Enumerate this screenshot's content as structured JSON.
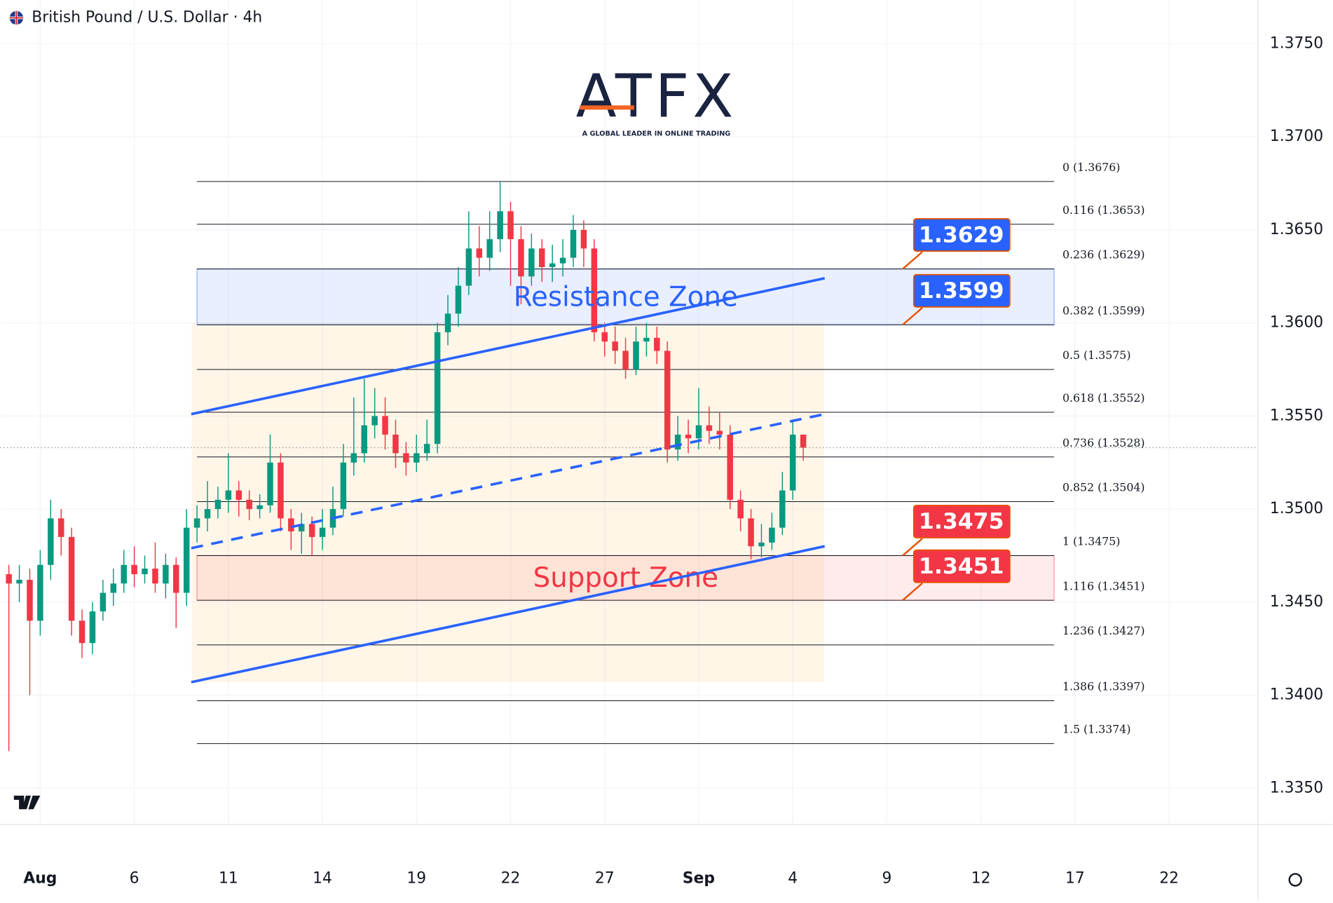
{
  "chart_data": {
    "type": "candlestick",
    "title": "British Pound / U.S. Dollar · 4h",
    "logo": {
      "name": "ATFX",
      "tagline": "A GLOBAL LEADER IN ONLINE TRADING"
    },
    "up_color": "#089981",
    "down_color": "#f23645",
    "x": [
      -6,
      -4,
      -2,
      0,
      2,
      4,
      6,
      8,
      10,
      12,
      14,
      16,
      18,
      20,
      22,
      24,
      26,
      28,
      30,
      32,
      34,
      36,
      38,
      40,
      42,
      44,
      46,
      48,
      50,
      52,
      54,
      56,
      58,
      60,
      62,
      64,
      66,
      68,
      70,
      72,
      74,
      76,
      78,
      80,
      82,
      84,
      86,
      88,
      90,
      92,
      94,
      96,
      98,
      100,
      102,
      104,
      106,
      108,
      110,
      112,
      114,
      116,
      118,
      120,
      122,
      124,
      126,
      128,
      130,
      132,
      134,
      136,
      138,
      140,
      142,
      144,
      146
    ],
    "open": [
      1.3465,
      1.346,
      1.3462,
      1.344,
      1.347,
      1.3495,
      1.3485,
      1.344,
      1.3428,
      1.3445,
      1.3455,
      1.346,
      1.347,
      1.3465,
      1.3468,
      1.346,
      1.347,
      1.3455,
      1.349,
      1.3495,
      1.35,
      1.3505,
      1.351,
      1.3505,
      1.35,
      1.3502,
      1.3525,
      1.3495,
      1.3488,
      1.3492,
      1.3485,
      1.349,
      1.35,
      1.3525,
      1.353,
      1.3545,
      1.355,
      1.354,
      1.353,
      1.3525,
      1.353,
      1.3535,
      1.3595,
      1.3605,
      1.362,
      1.364,
      1.3635,
      1.3645,
      1.366,
      1.3645,
      1.3625,
      1.364,
      1.363,
      1.3632,
      1.3635,
      1.365,
      1.364,
      1.3595,
      1.359,
      1.3585,
      1.3575,
      1.359,
      1.3592,
      1.3585,
      1.3532,
      1.354,
      1.3538,
      1.3545,
      1.3542,
      1.354,
      1.3505,
      1.3495,
      1.348,
      1.3482,
      1.349,
      1.351,
      1.354
    ],
    "high": [
      1.347,
      1.347,
      1.3468,
      1.3478,
      1.3505,
      1.35,
      1.349,
      1.3446,
      1.345,
      1.3462,
      1.3468,
      1.3478,
      1.348,
      1.3475,
      1.3482,
      1.3476,
      1.3474,
      1.35,
      1.3502,
      1.3515,
      1.3512,
      1.353,
      1.3515,
      1.351,
      1.3508,
      1.354,
      1.353,
      1.35,
      1.3498,
      1.3496,
      1.35,
      1.3512,
      1.3535,
      1.356,
      1.357,
      1.3565,
      1.356,
      1.3548,
      1.3536,
      1.354,
      1.3548,
      1.36,
      1.3615,
      1.363,
      1.366,
      1.3652,
      1.366,
      1.3676,
      1.3665,
      1.3652,
      1.3648,
      1.3645,
      1.3642,
      1.3645,
      1.3658,
      1.3655,
      1.3645,
      1.36,
      1.3598,
      1.3592,
      1.3598,
      1.36,
      1.3598,
      1.359,
      1.355,
      1.3548,
      1.3565,
      1.3555,
      1.3552,
      1.3545,
      1.351,
      1.35,
      1.3492,
      1.3498,
      1.352,
      1.3548,
      1.3538
    ],
    "low": [
      1.337,
      1.345,
      1.34,
      1.3432,
      1.3462,
      1.3475,
      1.3432,
      1.342,
      1.3422,
      1.344,
      1.3448,
      1.3455,
      1.3458,
      1.346,
      1.3455,
      1.3452,
      1.3436,
      1.3448,
      1.3482,
      1.3488,
      1.3495,
      1.3498,
      1.3496,
      1.3494,
      1.3495,
      1.3498,
      1.3488,
      1.3478,
      1.3476,
      1.3475,
      1.3478,
      1.3486,
      1.3496,
      1.3518,
      1.3525,
      1.3538,
      1.3532,
      1.3522,
      1.3518,
      1.352,
      1.3526,
      1.353,
      1.3588,
      1.3598,
      1.3615,
      1.3625,
      1.3628,
      1.3638,
      1.362,
      1.361,
      1.362,
      1.3622,
      1.3622,
      1.3625,
      1.363,
      1.363,
      1.359,
      1.3582,
      1.3578,
      1.357,
      1.3572,
      1.3582,
      1.3578,
      1.3525,
      1.3526,
      1.353,
      1.3532,
      1.3535,
      1.3532,
      1.35,
      1.3488,
      1.3473,
      1.3474,
      1.3478,
      1.3486,
      1.3505,
      1.3526
    ],
    "close": [
      1.346,
      1.3462,
      1.344,
      1.347,
      1.3495,
      1.3485,
      1.344,
      1.3428,
      1.3445,
      1.3455,
      1.346,
      1.347,
      1.3465,
      1.3468,
      1.346,
      1.347,
      1.3455,
      1.349,
      1.3495,
      1.35,
      1.3505,
      1.351,
      1.3505,
      1.35,
      1.3502,
      1.3525,
      1.3495,
      1.3488,
      1.3492,
      1.3485,
      1.349,
      1.35,
      1.3525,
      1.353,
      1.3545,
      1.355,
      1.354,
      1.353,
      1.3525,
      1.353,
      1.3535,
      1.3595,
      1.3605,
      1.362,
      1.364,
      1.3635,
      1.3645,
      1.366,
      1.3645,
      1.3625,
      1.364,
      1.363,
      1.3632,
      1.3635,
      1.365,
      1.364,
      1.3595,
      1.359,
      1.3585,
      1.3575,
      1.359,
      1.3592,
      1.3585,
      1.3532,
      1.354,
      1.3538,
      1.3545,
      1.3542,
      1.354,
      1.3505,
      1.3495,
      1.348,
      1.3482,
      1.349,
      1.351,
      1.354,
      1.3533
    ],
    "last_price": 1.3533,
    "xlim": [
      -7.64,
      233
    ],
    "xticks": [
      {
        "value": 0,
        "label": "Aug"
      },
      {
        "value": 18,
        "label": "6"
      },
      {
        "value": 36,
        "label": "11"
      },
      {
        "value": 54,
        "label": "14"
      },
      {
        "value": 72,
        "label": "19"
      },
      {
        "value": 90,
        "label": "22"
      },
      {
        "value": 108,
        "label": "27"
      },
      {
        "value": 126,
        "label": "Sep"
      },
      {
        "value": 144,
        "label": "4"
      },
      {
        "value": 162,
        "label": "9"
      },
      {
        "value": 180,
        "label": "12"
      },
      {
        "value": 198,
        "label": "17"
      },
      {
        "value": 216,
        "label": "22"
      }
    ],
    "ylim": [
      1.33305,
      1.37735
    ],
    "yticks": [
      {
        "value": 1.375,
        "label": "1.3750"
      },
      {
        "value": 1.37,
        "label": "1.3700"
      },
      {
        "value": 1.365,
        "label": "1.3650"
      },
      {
        "value": 1.36,
        "label": "1.3600"
      },
      {
        "value": 1.355,
        "label": "1.3550"
      },
      {
        "value": 1.35,
        "label": "1.3500"
      },
      {
        "value": 1.345,
        "label": "1.3450"
      },
      {
        "value": 1.34,
        "label": "1.3400"
      },
      {
        "value": 1.335,
        "label": "1.3350"
      }
    ],
    "grid": true,
    "fib_x": [
      30,
      194
    ],
    "fib_levels": [
      {
        "label": "0 (1.3676)",
        "value": 1.3676
      },
      {
        "label": "0.116 (1.3653)",
        "value": 1.3653
      },
      {
        "label": "0.236 (1.3629)",
        "value": 1.3629
      },
      {
        "label": "0.382 (1.3599)",
        "value": 1.3599
      },
      {
        "label": "0.5 (1.3575)",
        "value": 1.3575
      },
      {
        "label": "0.618 (1.3552)",
        "value": 1.3552
      },
      {
        "label": "0.736 (1.3528)",
        "value": 1.3528
      },
      {
        "label": "0.852 (1.3504)",
        "value": 1.3504
      },
      {
        "label": "1 (1.3475)",
        "value": 1.3475
      },
      {
        "label": "1.116 (1.3451)",
        "value": 1.3451
      },
      {
        "label": "1.236 (1.3427)",
        "value": 1.3427
      },
      {
        "label": "1.386 (1.3397)",
        "value": 1.3397
      },
      {
        "label": "1.5 (1.3374)",
        "value": 1.3374
      }
    ],
    "zones": [
      {
        "label": "Resistance Zone",
        "range": [
          1.3599,
          1.3629
        ],
        "color": "#2962ff"
      },
      {
        "label": "Support Zone",
        "range": [
          1.3451,
          1.3475
        ],
        "color": "#f23645"
      }
    ],
    "price_tags": [
      {
        "label": "1.3629",
        "value": 1.3629,
        "color": "#2962ff"
      },
      {
        "label": "1.3599",
        "value": 1.3599,
        "color": "#2962ff"
      },
      {
        "label": "1.3475",
        "value": 1.3475,
        "color": "#f23645"
      },
      {
        "label": "1.3451",
        "value": 1.3451,
        "color": "#f23645"
      }
    ],
    "trendlines": [
      {
        "style": "solid",
        "x": [
          28.9,
          150.1
        ],
        "y": [
          1.3551,
          1.3624
        ]
      },
      {
        "style": "dashed",
        "x": [
          28.9,
          150.1
        ],
        "y": [
          1.3479,
          1.3551
        ]
      },
      {
        "style": "solid",
        "x": [
          28.9,
          150.1
        ],
        "y": [
          1.3407,
          1.348
        ]
      }
    ],
    "box": {
      "x": [
        29,
        150
      ],
      "y": [
        1.3407,
        1.36
      ]
    }
  }
}
